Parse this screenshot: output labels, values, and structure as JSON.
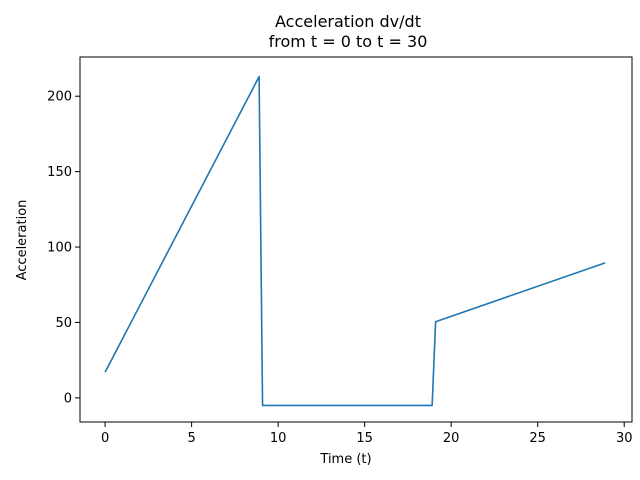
{
  "chart_data": {
    "type": "line",
    "title_line1": "Acceleration dv/dt",
    "title_line2": "from t = 0 to t = 30",
    "xlabel": "Time (t)",
    "ylabel": "Acceleration",
    "xlim": [
      -1.45,
      30.45
    ],
    "ylim": [
      -16,
      226
    ],
    "xticks": [
      0,
      5,
      10,
      15,
      20,
      25,
      30
    ],
    "yticks": [
      0,
      50,
      100,
      150,
      200
    ],
    "grid": false,
    "line_color": "#1f77b4",
    "series": [
      {
        "x": [
          0,
          8.9,
          9.1,
          18.9,
          19.1,
          28.9
        ],
        "y": [
          17,
          213,
          -5,
          -5,
          50.5,
          89.5
        ]
      }
    ]
  }
}
